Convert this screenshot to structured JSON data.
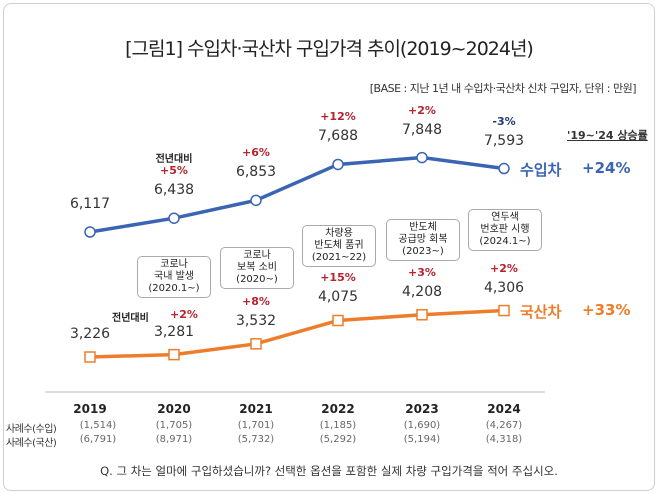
{
  "title": "[그림1] 수입차·국산차 구입가격 추이(2019~2024년)",
  "base_note": "[BASE : 지난 1년 내 수입차·국산차 신차 구입자, 단위 : 만원]",
  "chart_data": {
    "type": "line",
    "categories": [
      "2019",
      "2020",
      "2021",
      "2022",
      "2023",
      "2024"
    ],
    "series": [
      {
        "name": "수입차",
        "values": [
          6117,
          6438,
          6853,
          7688,
          7848,
          7593
        ],
        "value_labels": [
          "6,117",
          "6,438",
          "6,853",
          "7,688",
          "7,848",
          "7,593"
        ],
        "yoy": [
          "",
          "+5%",
          "+6%",
          "+12%",
          "+2%",
          "-3%"
        ],
        "color": "#3a64b4",
        "total_change": "+24%"
      },
      {
        "name": "국산차",
        "values": [
          3226,
          3281,
          3532,
          4075,
          4208,
          4306
        ],
        "value_labels": [
          "3,226",
          "3,281",
          "3,532",
          "4,075",
          "4,208",
          "4,306"
        ],
        "yoy": [
          "",
          "+2%",
          "+8%",
          "+15%",
          "+3%",
          "+2%"
        ],
        "color": "#ee7d2b",
        "total_change": "+33%"
      }
    ],
    "yoy_prefix": "전년대비",
    "change_header": "'19~'24 상승률",
    "annotations": [
      "코로나\n국내 발생\n(2020.1~)",
      "코로나\n보복 소비\n(2020~)",
      "차량용\n반도체 품귀\n(2021~22)",
      "반도체\n공급망 회복\n(2023~)",
      "연두색\n번호판 시행\n(2024.1~)"
    ],
    "sample_rows": [
      {
        "label": "사례수(수입)",
        "values": [
          "(1,514)",
          "(1,705)",
          "(1,701)",
          "(1,185)",
          "(1,690)",
          "(4,267)"
        ]
      },
      {
        "label": "사례수(국산)",
        "values": [
          "(6,791)",
          "(8,971)",
          "(5,732)",
          "(5,292)",
          "(5,194)",
          "(4,318)"
        ]
      }
    ]
  },
  "question": "Q. 그 차는 얼마에 구입하셨습니까? 선택한 옵션을 포함한 실제 차량 구입가격을 적어 주십시오."
}
